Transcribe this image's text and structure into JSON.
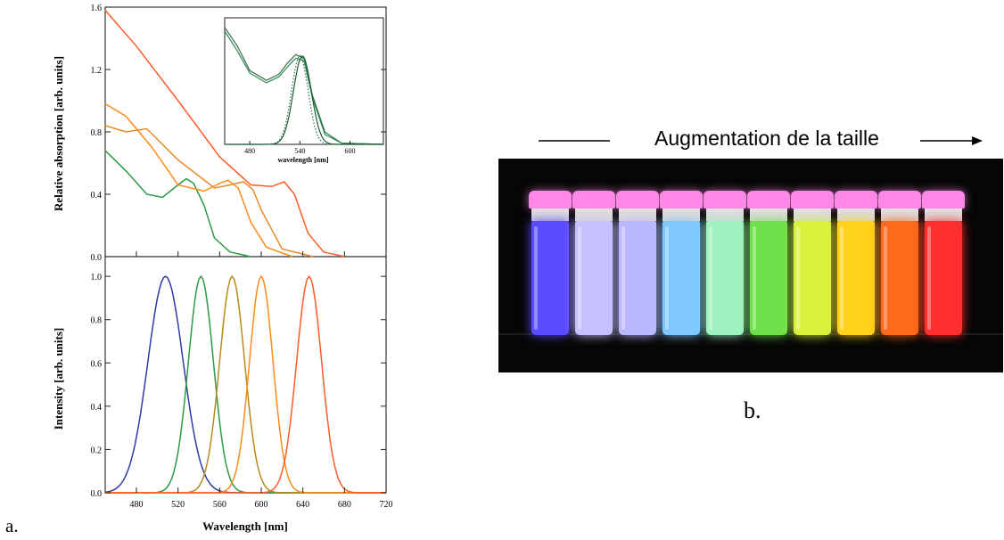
{
  "figure_a": {
    "label": "a.",
    "x_ticks": [
      "480",
      "520",
      "560",
      "600",
      "640",
      "680",
      "720"
    ],
    "xlabel": "Wavelength [nm]",
    "xlim": [
      450,
      720
    ]
  },
  "figure_b": {
    "caption": "b.",
    "size_text": "Augmentation de la taille",
    "vial_colors": [
      "#5a4bff",
      "#c6c0ff",
      "#bcb8ff",
      "#7ec8ff",
      "#9ef2c0",
      "#6fe04a",
      "#d8f23c",
      "#ffd21c",
      "#ff6a1c",
      "#ff2f2f"
    ]
  },
  "chart_data": [
    {
      "type": "line",
      "title": "",
      "xlabel": "",
      "ylabel": "Relative absorption [arb. units]",
      "xlim": [
        450,
        720
      ],
      "ylim": [
        0.0,
        1.6
      ],
      "y_ticks": [
        "0.0",
        "0.4",
        "0.8",
        "1.2",
        "1.6"
      ],
      "grid": false,
      "series": [
        {
          "color": "#2b9a46",
          "x": [
            450,
            470,
            490,
            505,
            520,
            528,
            535,
            545,
            555,
            570,
            590
          ],
          "y": [
            0.68,
            0.55,
            0.4,
            0.38,
            0.46,
            0.5,
            0.47,
            0.33,
            0.12,
            0.03,
            0.0
          ]
        },
        {
          "color": "#ff8a1c",
          "x": [
            450,
            470,
            495,
            520,
            545,
            560,
            568,
            578,
            590,
            605,
            630
          ],
          "y": [
            0.98,
            0.9,
            0.7,
            0.46,
            0.42,
            0.47,
            0.49,
            0.44,
            0.22,
            0.06,
            0.0
          ]
        },
        {
          "color": "#e88a28",
          "x": [
            450,
            470,
            490,
            520,
            555,
            570,
            583,
            592,
            600,
            620,
            650
          ],
          "y": [
            0.84,
            0.8,
            0.82,
            0.62,
            0.44,
            0.46,
            0.48,
            0.43,
            0.3,
            0.05,
            0.0
          ]
        },
        {
          "color": "#ff5b28",
          "x": [
            450,
            480,
            520,
            560,
            590,
            610,
            622,
            632,
            645,
            660,
            680
          ],
          "y": [
            1.58,
            1.35,
            1.0,
            0.64,
            0.46,
            0.45,
            0.48,
            0.4,
            0.15,
            0.03,
            0.0
          ]
        }
      ]
    },
    {
      "type": "line",
      "title": "",
      "xlabel": "Wavelength [nm]",
      "ylabel": "Intensity [arb. units]",
      "xlim": [
        450,
        720
      ],
      "ylim": [
        0.0,
        1.05
      ],
      "y_ticks": [
        "0.0",
        "0.2",
        "0.4",
        "0.6",
        "0.8",
        "1.0"
      ],
      "grid": false,
      "series": [
        {
          "color": "#2a3ca8",
          "peak": 508,
          "width": 24,
          "x": [
            450,
            720
          ]
        },
        {
          "color": "#2b9a46",
          "peak": 542,
          "width": 17,
          "x": [
            450,
            720
          ]
        },
        {
          "color": "#b98a1c",
          "peak": 572,
          "width": 17,
          "x": [
            450,
            720
          ]
        },
        {
          "color": "#ff8a1c",
          "peak": 600,
          "width": 16,
          "x": [
            450,
            720
          ]
        },
        {
          "color": "#ff5b28",
          "peak": 646,
          "width": 17,
          "x": [
            450,
            720
          ]
        }
      ]
    },
    {
      "type": "line",
      "title": "",
      "xlabel": "wavelength [nm]",
      "ylabel": "",
      "xlim": [
        450,
        640
      ],
      "ylim": [
        0.0,
        1.0
      ],
      "x_ticks": [
        "480",
        "540",
        "600"
      ],
      "grid": false,
      "series": [
        {
          "color": "#3a6e4a",
          "x": [
            450,
            465,
            480,
            500,
            515,
            525,
            535,
            545,
            555,
            570,
            590,
            640
          ],
          "y": [
            0.95,
            0.8,
            0.6,
            0.52,
            0.57,
            0.66,
            0.73,
            0.7,
            0.4,
            0.1,
            0.01,
            0.0
          ]
        },
        {
          "color": "#2e8b57",
          "x": [
            450,
            465,
            480,
            500,
            515,
            525,
            535,
            545,
            555,
            570,
            590,
            640
          ],
          "y": [
            0.92,
            0.76,
            0.58,
            0.5,
            0.55,
            0.63,
            0.7,
            0.68,
            0.38,
            0.08,
            0.01,
            0.0
          ]
        },
        {
          "color": "#2b6e3e",
          "style": "dotted",
          "peak": 540,
          "width": 14
        },
        {
          "color": "#1f5e3a",
          "style": "solid",
          "peak": 543,
          "width": 15
        }
      ]
    }
  ]
}
